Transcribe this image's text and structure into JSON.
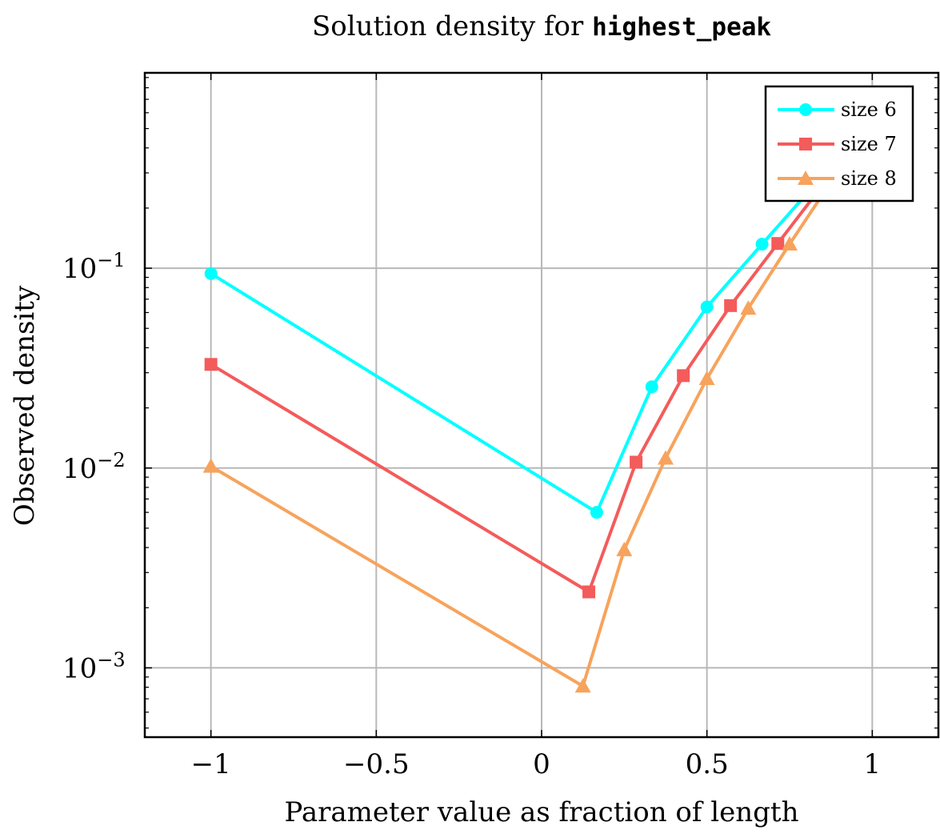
{
  "chart_data": {
    "type": "line",
    "title_prefix": "Solution density for ",
    "title_code": "highest_peak",
    "xlabel": "Parameter value as fraction of length",
    "ylabel": "Observed density",
    "yscale": "log",
    "xlim": [
      -1.2,
      1.2
    ],
    "ylim": [
      0.00045,
      0.95
    ],
    "grid": true,
    "legend_position": "top-right",
    "x_ticks": [
      {
        "value": -1,
        "label": "−1"
      },
      {
        "value": -0.5,
        "label": "−0.5"
      },
      {
        "value": 0,
        "label": "0"
      },
      {
        "value": 0.5,
        "label": "0.5"
      },
      {
        "value": 1,
        "label": "1"
      }
    ],
    "y_ticks": [
      {
        "value": 0.001,
        "base": "10",
        "exp": "−3"
      },
      {
        "value": 0.01,
        "base": "10",
        "exp": "−2"
      },
      {
        "value": 0.1,
        "base": "10",
        "exp": "−1"
      }
    ],
    "series": [
      {
        "name": "size 6",
        "color": "#00ffff",
        "marker": "circle",
        "x": [
          -1,
          0.1667,
          0.3333,
          0.5,
          0.6667,
          0.8333,
          1.0
        ],
        "y": [
          0.094,
          0.006,
          0.0255,
          0.064,
          0.132,
          0.27,
          0.55
        ]
      },
      {
        "name": "size 7",
        "color": "#f45b5b",
        "marker": "square",
        "x": [
          -1,
          0.1429,
          0.2857,
          0.4286,
          0.5714,
          0.7143,
          0.8571,
          1.0
        ],
        "y": [
          0.033,
          0.0024,
          0.0107,
          0.029,
          0.065,
          0.133,
          0.27,
          0.55
        ]
      },
      {
        "name": "size 8",
        "color": "#f7a35c",
        "marker": "triangle",
        "x": [
          -1,
          0.125,
          0.25,
          0.375,
          0.5,
          0.625,
          0.75,
          0.875,
          1.0
        ],
        "y": [
          0.0102,
          0.00081,
          0.0039,
          0.0112,
          0.028,
          0.063,
          0.132,
          0.27,
          0.55
        ]
      }
    ]
  }
}
